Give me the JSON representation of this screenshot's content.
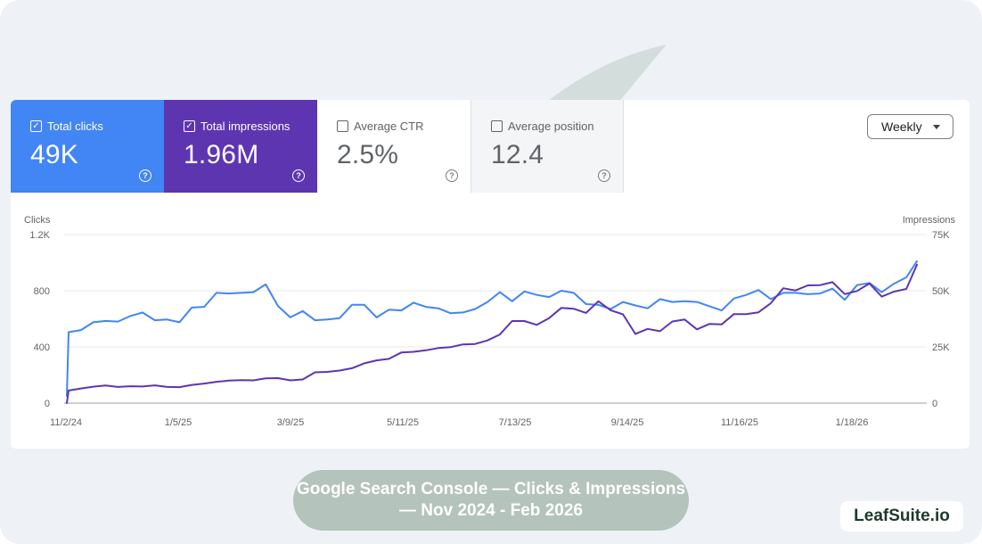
{
  "metrics": [
    {
      "label": "Total clicks",
      "value": "49K",
      "checked": true,
      "color": "#4285f4"
    },
    {
      "label": "Total impressions",
      "value": "1.96M",
      "checked": true,
      "color": "#5e35b1"
    },
    {
      "label": "Average CTR",
      "value": "2.5%",
      "checked": false,
      "color": "#ffffff"
    },
    {
      "label": "Average position",
      "value": "12.4",
      "checked": false,
      "color": "#f4f5f6"
    }
  ],
  "checkmark": "✓",
  "help_glyph": "?",
  "granularity": {
    "selected": "Weekly"
  },
  "caption": "Google Search Console — Clicks & Impressions — Nov 2024 - Feb 2026",
  "brand": "LeafSuite.io",
  "colors": {
    "clicks": "#4285f4",
    "impressions": "#5e35b1",
    "watermark": "#b7c7bf"
  },
  "icons": {
    "watermark": "leaf-bar-chart-watermark",
    "checkbox": "checkbox-icon",
    "help": "help-circle-icon",
    "dropdown": "dropdown-caret-icon"
  },
  "chart_data": {
    "type": "line",
    "y_left": {
      "label": "Clicks",
      "ticks": [
        "0",
        "400",
        "800",
        "1.2K"
      ],
      "range": [
        0,
        1200
      ]
    },
    "y_right": {
      "label": "Impressions",
      "ticks": [
        "0",
        "25K",
        "50K",
        "75K"
      ],
      "range": [
        0,
        75000
      ]
    },
    "x_ticks": [
      "11/2/24",
      "1/5/25",
      "3/9/25",
      "5/11/25",
      "7/13/25",
      "9/14/25",
      "11/16/25",
      "1/18/26"
    ],
    "x_range": [
      "2024-10-27",
      "2026-02-22"
    ],
    "grid": true,
    "series": [
      {
        "name": "Total clicks",
        "axis": "left",
        "color": "#4285f4",
        "points": [
          [
            "2024-10-27",
            50
          ],
          [
            "2024-10-28",
            505
          ],
          [
            "2024-11-04",
            520
          ],
          [
            "2024-11-11",
            575
          ],
          [
            "2024-11-18",
            585
          ],
          [
            "2024-11-25",
            580
          ],
          [
            "2024-12-02",
            620
          ],
          [
            "2024-12-09",
            645
          ],
          [
            "2024-12-16",
            590
          ],
          [
            "2024-12-23",
            595
          ],
          [
            "2024-12-30",
            575
          ],
          [
            "2025-01-06",
            680
          ],
          [
            "2025-01-13",
            685
          ],
          [
            "2025-01-20",
            785
          ],
          [
            "2025-01-27",
            780
          ],
          [
            "2025-02-03",
            785
          ],
          [
            "2025-02-10",
            790
          ],
          [
            "2025-02-17",
            845
          ],
          [
            "2025-02-24",
            690
          ],
          [
            "2025-03-03",
            610
          ],
          [
            "2025-03-10",
            655
          ],
          [
            "2025-03-17",
            590
          ],
          [
            "2025-03-24",
            595
          ],
          [
            "2025-03-31",
            605
          ],
          [
            "2025-04-07",
            700
          ],
          [
            "2025-04-14",
            700
          ],
          [
            "2025-04-21",
            610
          ],
          [
            "2025-04-28",
            665
          ],
          [
            "2025-05-05",
            660
          ],
          [
            "2025-05-12",
            715
          ],
          [
            "2025-05-19",
            685
          ],
          [
            "2025-05-26",
            675
          ],
          [
            "2025-06-02",
            640
          ],
          [
            "2025-06-09",
            645
          ],
          [
            "2025-06-16",
            670
          ],
          [
            "2025-06-23",
            720
          ],
          [
            "2025-06-30",
            790
          ],
          [
            "2025-07-07",
            725
          ],
          [
            "2025-07-14",
            795
          ],
          [
            "2025-07-21",
            770
          ],
          [
            "2025-07-28",
            755
          ],
          [
            "2025-08-04",
            800
          ],
          [
            "2025-08-11",
            785
          ],
          [
            "2025-08-18",
            705
          ],
          [
            "2025-08-25",
            700
          ],
          [
            "2025-09-01",
            670
          ],
          [
            "2025-09-08",
            720
          ],
          [
            "2025-09-15",
            695
          ],
          [
            "2025-09-22",
            675
          ],
          [
            "2025-09-29",
            740
          ],
          [
            "2025-10-06",
            720
          ],
          [
            "2025-10-13",
            725
          ],
          [
            "2025-10-20",
            720
          ],
          [
            "2025-10-27",
            690
          ],
          [
            "2025-11-03",
            660
          ],
          [
            "2025-11-10",
            745
          ],
          [
            "2025-11-17",
            770
          ],
          [
            "2025-11-24",
            805
          ],
          [
            "2025-12-01",
            740
          ],
          [
            "2025-12-08",
            785
          ],
          [
            "2025-12-15",
            785
          ],
          [
            "2025-12-22",
            775
          ],
          [
            "2025-12-29",
            780
          ],
          [
            "2026-01-05",
            815
          ],
          [
            "2026-01-12",
            735
          ],
          [
            "2026-01-19",
            840
          ],
          [
            "2026-01-26",
            855
          ],
          [
            "2026-02-02",
            790
          ],
          [
            "2026-02-09",
            850
          ],
          [
            "2026-02-16",
            895
          ],
          [
            "2026-02-22",
            1010
          ]
        ]
      },
      {
        "name": "Total impressions",
        "axis": "right",
        "color": "#5e35b1",
        "points": [
          [
            "2024-10-27",
            0
          ],
          [
            "2024-10-28",
            5600
          ],
          [
            "2024-11-04",
            6500
          ],
          [
            "2024-11-11",
            7300
          ],
          [
            "2024-11-18",
            7800
          ],
          [
            "2024-11-25",
            7200
          ],
          [
            "2024-12-02",
            7500
          ],
          [
            "2024-12-09",
            7400
          ],
          [
            "2024-12-16",
            7900
          ],
          [
            "2024-12-23",
            7200
          ],
          [
            "2024-12-30",
            7100
          ],
          [
            "2025-01-06",
            8100
          ],
          [
            "2025-01-13",
            8700
          ],
          [
            "2025-01-20",
            9500
          ],
          [
            "2025-01-27",
            10000
          ],
          [
            "2025-02-03",
            10200
          ],
          [
            "2025-02-10",
            10100
          ],
          [
            "2025-02-17",
            11000
          ],
          [
            "2025-02-24",
            11100
          ],
          [
            "2025-03-03",
            10100
          ],
          [
            "2025-03-10",
            10500
          ],
          [
            "2025-03-17",
            13700
          ],
          [
            "2025-03-24",
            13900
          ],
          [
            "2025-03-31",
            14500
          ],
          [
            "2025-04-07",
            15500
          ],
          [
            "2025-04-14",
            17700
          ],
          [
            "2025-04-21",
            19000
          ],
          [
            "2025-04-28",
            19700
          ],
          [
            "2025-05-05",
            22500
          ],
          [
            "2025-05-12",
            22800
          ],
          [
            "2025-05-19",
            23500
          ],
          [
            "2025-05-26",
            24500
          ],
          [
            "2025-06-02",
            24900
          ],
          [
            "2025-06-09",
            26100
          ],
          [
            "2025-06-16",
            26300
          ],
          [
            "2025-06-23",
            27900
          ],
          [
            "2025-06-30",
            30500
          ],
          [
            "2025-07-07",
            36500
          ],
          [
            "2025-07-14",
            36500
          ],
          [
            "2025-07-21",
            34800
          ],
          [
            "2025-07-28",
            37800
          ],
          [
            "2025-08-04",
            42400
          ],
          [
            "2025-08-11",
            42000
          ],
          [
            "2025-08-18",
            40100
          ],
          [
            "2025-08-25",
            45300
          ],
          [
            "2025-09-01",
            41300
          ],
          [
            "2025-09-08",
            39500
          ],
          [
            "2025-09-15",
            30800
          ],
          [
            "2025-09-22",
            33000
          ],
          [
            "2025-09-29",
            32000
          ],
          [
            "2025-10-06",
            36300
          ],
          [
            "2025-10-13",
            37200
          ],
          [
            "2025-10-20",
            32800
          ],
          [
            "2025-10-27",
            35200
          ],
          [
            "2025-11-03",
            35000
          ],
          [
            "2025-11-10",
            39600
          ],
          [
            "2025-11-17",
            39600
          ],
          [
            "2025-11-24",
            40400
          ],
          [
            "2025-12-01",
            44500
          ],
          [
            "2025-12-08",
            51100
          ],
          [
            "2025-12-15",
            50100
          ],
          [
            "2025-12-22",
            52400
          ],
          [
            "2025-12-29",
            52500
          ],
          [
            "2026-01-05",
            53800
          ],
          [
            "2026-01-12",
            48500
          ],
          [
            "2026-01-19",
            49900
          ],
          [
            "2026-01-26",
            53200
          ],
          [
            "2026-02-02",
            47400
          ],
          [
            "2026-02-09",
            49600
          ],
          [
            "2026-02-16",
            50800
          ],
          [
            "2026-02-22",
            61600
          ]
        ]
      }
    ]
  }
}
